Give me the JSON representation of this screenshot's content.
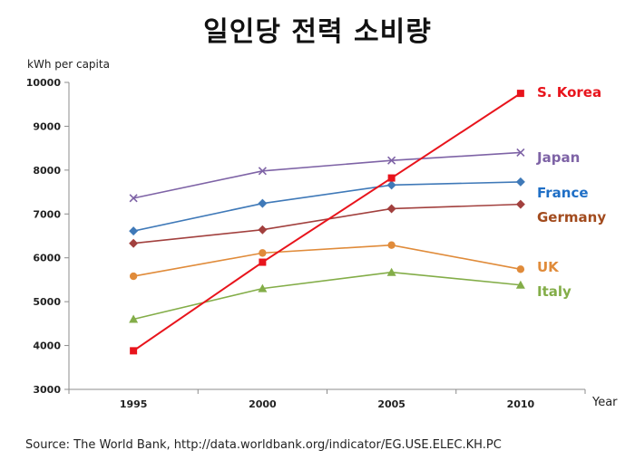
{
  "title": "일인당 전력 소비량",
  "source": "Source: The World Bank, http://data.worldbank.org/indicator/EG.USE.ELEC.KH.PC",
  "chart_data": {
    "type": "line",
    "title": "일인당 전력 소비량",
    "ylabel": "kWh per capita",
    "xlabel": "Year",
    "categories": [
      "1995",
      "2000",
      "2005",
      "2010"
    ],
    "ylim": [
      3000,
      10000
    ],
    "yticks": [
      3000,
      4000,
      5000,
      6000,
      7000,
      8000,
      9000,
      10000
    ],
    "grid": false,
    "series": [
      {
        "name": "S. Korea",
        "values": [
          3880,
          5900,
          7820,
          9750
        ],
        "color": "#e8141c",
        "marker": "square"
      },
      {
        "name": "Japan",
        "values": [
          7360,
          7980,
          8220,
          8400
        ],
        "color": "#7e63a6",
        "marker": "x"
      },
      {
        "name": "France",
        "values": [
          6610,
          7240,
          7660,
          7730
        ],
        "color": "#3f79b8",
        "marker": "diamond"
      },
      {
        "name": "Germany",
        "values": [
          6330,
          6640,
          7120,
          7220
        ],
        "color": "#a2403e",
        "marker": "diamond"
      },
      {
        "name": "UK",
        "values": [
          5580,
          6110,
          6290,
          5740
        ],
        "color": "#e08b3a",
        "marker": "circle"
      },
      {
        "name": "Italy",
        "values": [
          4600,
          5300,
          5670,
          5380
        ],
        "color": "#83ad48",
        "marker": "triangle"
      }
    ],
    "legend_label_colors": {
      "S. Korea": "#e8141c",
      "Japan": "#7e63a6",
      "France": "#1f6fc6",
      "Germany": "#a24b1e",
      "UK": "#e08b3a",
      "Italy": "#83ad48"
    }
  }
}
